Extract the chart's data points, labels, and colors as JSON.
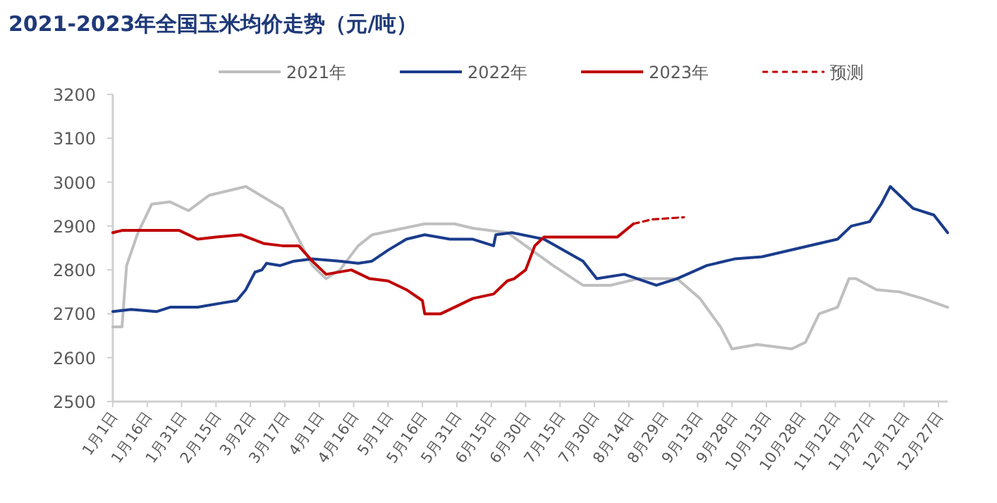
{
  "chart_data": {
    "type": "line",
    "title": "2021-2023年全国玉米均价走势（元/吨）",
    "legend": "top",
    "xlim": [
      "--01-01",
      "--12-31"
    ],
    "xticks": [
      {
        "value": "--01-01",
        "label": "1月1日"
      },
      {
        "value": "--01-16",
        "label": "1月16日"
      },
      {
        "value": "--01-31",
        "label": "1月31日"
      },
      {
        "value": "--02-15",
        "label": "2月15日"
      },
      {
        "value": "--03-02",
        "label": "3月2日"
      },
      {
        "value": "--03-17",
        "label": "3月17日"
      },
      {
        "value": "--04-01",
        "label": "4月1日"
      },
      {
        "value": "--04-16",
        "label": "4月16日"
      },
      {
        "value": "--05-01",
        "label": "5月1日"
      },
      {
        "value": "--05-16",
        "label": "5月16日"
      },
      {
        "value": "--05-31",
        "label": "5月31日"
      },
      {
        "value": "--06-15",
        "label": "6月15日"
      },
      {
        "value": "--06-30",
        "label": "6月30日"
      },
      {
        "value": "--07-15",
        "label": "7月15日"
      },
      {
        "value": "--07-30",
        "label": "7月30日"
      },
      {
        "value": "--08-14",
        "label": "8月14日"
      },
      {
        "value": "--08-29",
        "label": "8月29日"
      },
      {
        "value": "--09-13",
        "label": "9月13日"
      },
      {
        "value": "--09-28",
        "label": "9月28日"
      },
      {
        "value": "--10-13",
        "label": "10月13日"
      },
      {
        "value": "--10-28",
        "label": "10月28日"
      },
      {
        "value": "--11-12",
        "label": "11月12日"
      },
      {
        "value": "--11-27",
        "label": "11月27日"
      },
      {
        "value": "--12-12",
        "label": "12月12日"
      },
      {
        "value": "--12-27",
        "label": "12月27日"
      }
    ],
    "ylim": [
      2500,
      3200
    ],
    "yticks": [
      2500,
      2600,
      2700,
      2800,
      2900,
      3000,
      3100,
      3200
    ],
    "series": [
      {
        "name": "2021年",
        "color": "#bfbfbf",
        "x": [
          "--01-01",
          "--01-05",
          "--01-07",
          "--01-12",
          "--01-18",
          "--01-26",
          "--02-03",
          "--02-12",
          "--02-28",
          "--03-16",
          "--03-29",
          "--04-04",
          "--04-10",
          "--04-18",
          "--04-24",
          "--05-17",
          "--05-30",
          "--06-07",
          "--06-22",
          "--06-30",
          "--07-12",
          "--07-25",
          "--08-06",
          "--08-18",
          "--09-04",
          "--09-14",
          "--09-23",
          "--09-28",
          "--10-09",
          "--10-24",
          "--10-30",
          "--11-05",
          "--11-13",
          "--11-18",
          "--11-21",
          "--11-30",
          "--12-10",
          "--12-20",
          "--12-31"
        ],
        "values": [
          2670,
          2670,
          2810,
          2885,
          2950,
          2955,
          2935,
          2970,
          2990,
          2940,
          2810,
          2780,
          2800,
          2855,
          2880,
          2905,
          2905,
          2895,
          2885,
          2855,
          2810,
          2765,
          2765,
          2780,
          2780,
          2735,
          2670,
          2620,
          2630,
          2620,
          2635,
          2700,
          2715,
          2780,
          2780,
          2755,
          2750,
          2735,
          2715
        ]
      },
      {
        "name": "2022年",
        "color": "#1a3c8c",
        "x": [
          "--01-01",
          "--01-09",
          "--01-20",
          "--01-26",
          "--02-07",
          "--02-18",
          "--02-24",
          "--02-28",
          "--03-04",
          "--03-07",
          "--03-09",
          "--03-15",
          "--03-21",
          "--03-29",
          "--04-10",
          "--04-18",
          "--04-24",
          "--05-01",
          "--05-09",
          "--05-17",
          "--05-28",
          "--06-07",
          "--06-16",
          "--06-17",
          "--06-24",
          "--07-08",
          "--07-25",
          "--07-31",
          "--08-12",
          "--08-26",
          "--09-04",
          "--09-17",
          "--09-29",
          "--10-11",
          "--11-13",
          "--11-19",
          "--11-27",
          "--12-02",
          "--12-06",
          "--12-10",
          "--12-16",
          "--12-25",
          "--12-31"
        ],
        "values": [
          2705,
          2710,
          2705,
          2715,
          2715,
          2725,
          2730,
          2755,
          2795,
          2800,
          2815,
          2810,
          2820,
          2825,
          2820,
          2815,
          2820,
          2845,
          2870,
          2880,
          2870,
          2870,
          2855,
          2880,
          2885,
          2870,
          2820,
          2780,
          2790,
          2765,
          2780,
          2810,
          2825,
          2830,
          2870,
          2900,
          2910,
          2950,
          2990,
          2970,
          2940,
          2925,
          2885
        ]
      },
      {
        "name": "2023年",
        "color": "#c00000",
        "x": [
          "--01-01",
          "--01-05",
          "--01-30",
          "--02-07",
          "--02-15",
          "--02-26",
          "--03-08",
          "--03-16",
          "--03-23",
          "--03-29",
          "--04-04",
          "--04-15",
          "--04-23",
          "--05-01",
          "--05-09",
          "--05-16",
          "--05-17",
          "--05-24",
          "--05-30",
          "--06-07",
          "--06-16",
          "--06-22",
          "--06-25",
          "--06-30",
          "--07-04",
          "--07-08",
          "--07-18",
          "--08-09",
          "--08-16"
        ],
        "values": [
          2885,
          2890,
          2890,
          2870,
          2875,
          2880,
          2860,
          2855,
          2855,
          2820,
          2790,
          2800,
          2780,
          2775,
          2755,
          2730,
          2700,
          2700,
          2715,
          2735,
          2745,
          2775,
          2780,
          2800,
          2855,
          2875,
          2875,
          2875,
          2905
        ]
      },
      {
        "name": "预测",
        "color": "#c00000",
        "line_style": "dashed",
        "x": [
          "--08-16",
          "--08-24",
          "--09-07"
        ],
        "values": [
          2905,
          2915,
          2920
        ]
      }
    ]
  }
}
